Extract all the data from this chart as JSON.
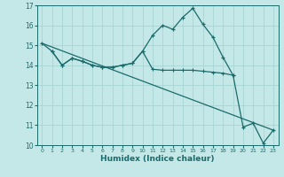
{
  "xlabel": "Humidex (Indice chaleur)",
  "xlim": [
    -0.5,
    23.5
  ],
  "ylim": [
    10,
    17
  ],
  "yticks": [
    10,
    11,
    12,
    13,
    14,
    15,
    16,
    17
  ],
  "xticks": [
    0,
    1,
    2,
    3,
    4,
    5,
    6,
    7,
    8,
    9,
    10,
    11,
    12,
    13,
    14,
    15,
    16,
    17,
    18,
    19,
    20,
    21,
    22,
    23
  ],
  "bg_color": "#c4e8e8",
  "grid_color": "#a8d4d4",
  "line_color": "#1a6b6b",
  "line1_x": [
    0,
    1,
    2,
    3,
    4,
    5,
    6,
    7,
    8,
    9,
    10,
    11,
    12,
    13,
    14,
    15,
    16,
    17,
    18,
    19,
    20,
    21,
    22,
    23
  ],
  "line1_y": [
    15.1,
    14.7,
    14.0,
    14.35,
    14.2,
    14.0,
    13.9,
    13.9,
    14.0,
    14.1,
    14.7,
    15.5,
    16.0,
    15.8,
    16.4,
    16.85,
    16.05,
    15.4,
    14.4,
    13.5,
    10.9,
    11.1,
    10.1,
    10.75
  ],
  "line2_x": [
    1,
    2,
    3,
    4,
    5,
    6,
    7,
    8,
    9,
    10,
    11,
    12,
    13,
    14,
    15,
    16,
    17,
    18,
    19
  ],
  "line2_y": [
    14.7,
    14.0,
    14.35,
    14.2,
    14.0,
    13.9,
    13.9,
    14.0,
    14.1,
    14.7,
    13.8,
    13.75,
    13.75,
    13.75,
    13.75,
    13.7,
    13.65,
    13.6,
    13.5
  ],
  "line3_x": [
    0,
    23
  ],
  "line3_y": [
    15.1,
    10.75
  ]
}
